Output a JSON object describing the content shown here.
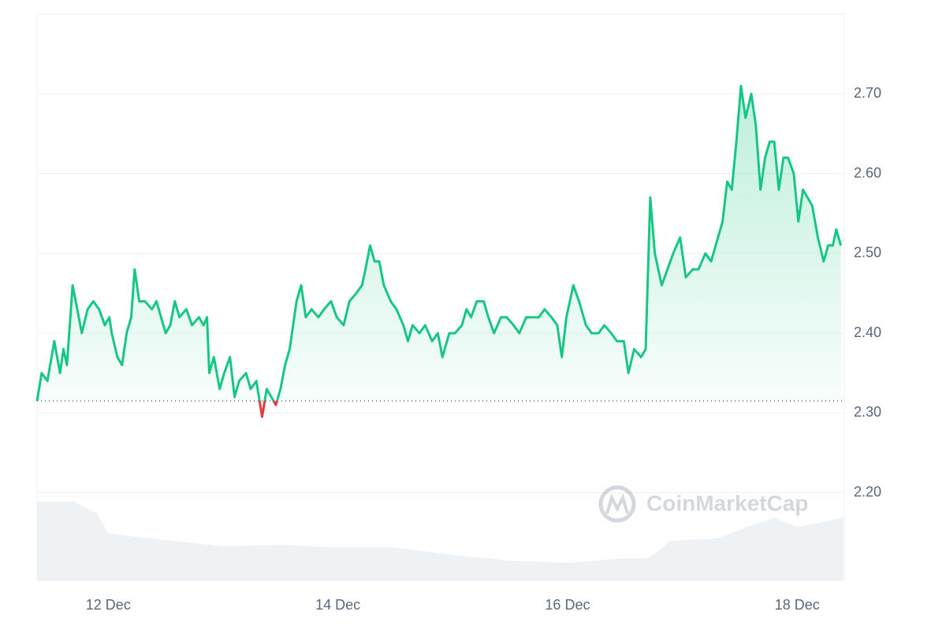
{
  "chart_data": {
    "type": "line",
    "watermark": "CoinMarketCap",
    "x": [
      11.38,
      11.42,
      11.47,
      11.53,
      11.58,
      11.61,
      11.64,
      11.69,
      11.73,
      11.77,
      11.82,
      11.87,
      11.92,
      11.97,
      12.01,
      12.03,
      12.08,
      12.12,
      12.16,
      12.2,
      12.23,
      12.27,
      12.32,
      12.38,
      12.42,
      12.46,
      12.5,
      12.54,
      12.58,
      12.62,
      12.68,
      12.73,
      12.79,
      12.83,
      12.86,
      12.88,
      12.92,
      12.97,
      13.01,
      13.06,
      13.1,
      13.14,
      13.2,
      13.24,
      13.29,
      13.34,
      13.38,
      13.42,
      13.46,
      13.5,
      13.54,
      13.58,
      13.64,
      13.68,
      13.72,
      13.77,
      13.83,
      13.88,
      13.94,
      13.99,
      14.05,
      14.1,
      14.16,
      14.21,
      14.24,
      14.28,
      14.32,
      14.36,
      14.4,
      14.46,
      14.51,
      14.57,
      14.61,
      14.65,
      14.71,
      14.76,
      14.82,
      14.87,
      14.91,
      14.97,
      15.02,
      15.08,
      15.12,
      15.16,
      15.21,
      15.27,
      15.31,
      15.36,
      15.42,
      15.47,
      15.53,
      15.58,
      15.64,
      15.69,
      15.75,
      15.8,
      15.86,
      15.91,
      15.95,
      15.99,
      16.05,
      16.1,
      16.16,
      16.21,
      16.27,
      16.32,
      16.38,
      16.43,
      16.49,
      16.53,
      16.58,
      16.64,
      16.68,
      16.72,
      16.76,
      16.82,
      16.87,
      16.92,
      16.98,
      17.03,
      17.09,
      17.14,
      17.2,
      17.25,
      17.31,
      17.35,
      17.39,
      17.43,
      17.47,
      17.51,
      17.55,
      17.6,
      17.64,
      17.68,
      17.72,
      17.76,
      17.8,
      17.84,
      17.88,
      17.92,
      17.97,
      18.01,
      18.05,
      18.09,
      18.13,
      18.18,
      18.23,
      18.27,
      18.31,
      18.34,
      18.38
    ],
    "series": [
      {
        "color": "#16c784",
        "down_color": "#ea3943",
        "values": [
          2.315,
          2.35,
          2.34,
          2.39,
          2.35,
          2.38,
          2.36,
          2.46,
          2.43,
          2.4,
          2.43,
          2.44,
          2.43,
          2.41,
          2.42,
          2.4,
          2.37,
          2.36,
          2.4,
          2.42,
          2.48,
          2.44,
          2.44,
          2.43,
          2.44,
          2.42,
          2.4,
          2.41,
          2.44,
          2.42,
          2.43,
          2.41,
          2.42,
          2.41,
          2.42,
          2.35,
          2.37,
          2.33,
          2.35,
          2.37,
          2.32,
          2.34,
          2.35,
          2.33,
          2.34,
          2.295,
          2.33,
          2.32,
          2.31,
          2.33,
          2.36,
          2.38,
          2.44,
          2.46,
          2.42,
          2.43,
          2.42,
          2.43,
          2.44,
          2.42,
          2.41,
          2.44,
          2.45,
          2.46,
          2.48,
          2.51,
          2.49,
          2.49,
          2.46,
          2.44,
          2.43,
          2.41,
          2.39,
          2.41,
          2.4,
          2.41,
          2.39,
          2.4,
          2.37,
          2.4,
          2.4,
          2.41,
          2.43,
          2.42,
          2.44,
          2.44,
          2.42,
          2.4,
          2.42,
          2.42,
          2.41,
          2.4,
          2.42,
          2.42,
          2.42,
          2.43,
          2.42,
          2.41,
          2.37,
          2.42,
          2.46,
          2.44,
          2.41,
          2.4,
          2.4,
          2.41,
          2.4,
          2.39,
          2.39,
          2.35,
          2.38,
          2.37,
          2.38,
          2.57,
          2.5,
          2.46,
          2.48,
          2.5,
          2.52,
          2.47,
          2.48,
          2.48,
          2.5,
          2.49,
          2.52,
          2.54,
          2.59,
          2.58,
          2.64,
          2.71,
          2.67,
          2.7,
          2.66,
          2.58,
          2.62,
          2.64,
          2.64,
          2.58,
          2.62,
          2.62,
          2.6,
          2.54,
          2.58,
          2.57,
          2.56,
          2.52,
          2.49,
          2.51,
          2.51,
          2.53,
          2.51
        ]
      },
      {
        "axis": "y2",
        "color": "#eff2f5",
        "x": [
          11.38,
          11.7,
          11.9,
          12.0,
          12.3,
          12.7,
          13.0,
          13.5,
          14.0,
          14.5,
          15.0,
          15.5,
          16.0,
          16.5,
          16.7,
          16.9,
          17.3,
          17.6,
          17.8,
          18.0,
          18.4
        ],
        "values": [
          13.9,
          13.9,
          11.8,
          8.3,
          7.6,
          6.7,
          6.0,
          6.3,
          5.8,
          5.8,
          4.5,
          3.5,
          3.1,
          3.9,
          3.9,
          7.0,
          7.4,
          9.7,
          11.1,
          9.4,
          11.1
        ]
      }
    ],
    "baseline": 2.315,
    "xlim": [
      11.38,
      18.41
    ],
    "ylim": [
      2.09,
      2.8
    ],
    "y2lim": [
      0,
      100
    ],
    "xticks": [
      {
        "value": 12,
        "label": "12 Dec"
      },
      {
        "value": 14,
        "label": "14 Dec"
      },
      {
        "value": 16,
        "label": "16 Dec"
      },
      {
        "value": 18,
        "label": "18 Dec"
      }
    ],
    "yticks": [
      {
        "value": 2.2,
        "label": "2.20"
      },
      {
        "value": 2.3,
        "label": "2.30"
      },
      {
        "value": 2.4,
        "label": "2.40"
      },
      {
        "value": 2.5,
        "label": "2.50"
      },
      {
        "value": 2.6,
        "label": "2.60"
      },
      {
        "value": 2.7,
        "label": "2.70"
      }
    ],
    "grid": true
  }
}
